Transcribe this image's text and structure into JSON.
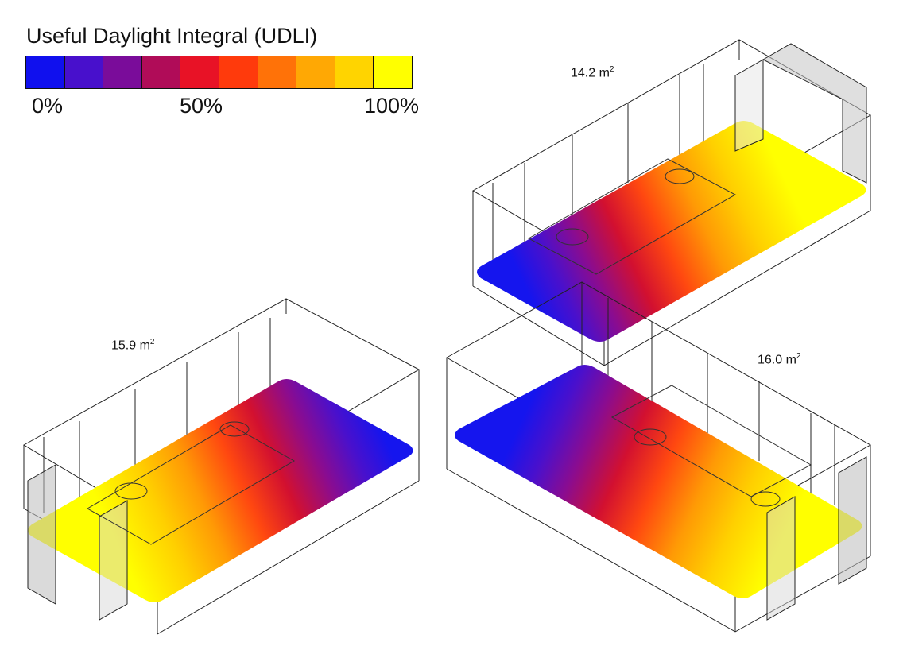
{
  "legend": {
    "title": "Useful Daylight Integral (UDLI)",
    "colors": [
      "#1010ee",
      "#4810cc",
      "#7a0c9a",
      "#b00c58",
      "#e81226",
      "#ff3a0c",
      "#ff7208",
      "#ffa804",
      "#ffd400",
      "#ffff00"
    ],
    "ticks": [
      "0%",
      "50%",
      "100%"
    ]
  },
  "rooms": [
    {
      "area_value": "15.9",
      "area_unit": "m",
      "area_exp": "2"
    },
    {
      "area_value": "14.2",
      "area_unit": "m",
      "area_exp": "2"
    },
    {
      "area_value": "16.0",
      "area_unit": "m",
      "area_exp": "2"
    }
  ]
}
